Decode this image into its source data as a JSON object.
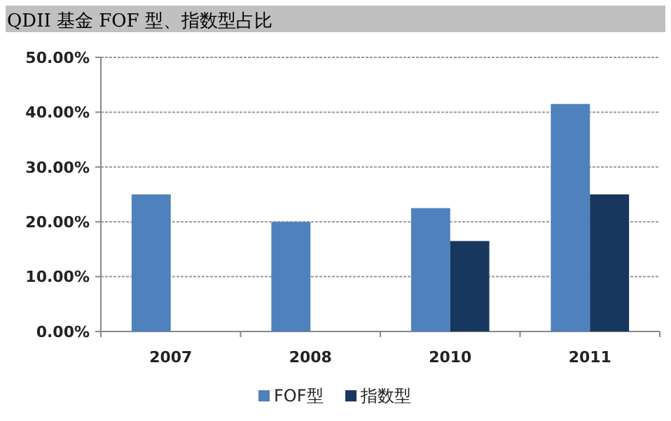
{
  "chart_data": {
    "type": "bar",
    "title": "QDII 基金 FOF 型、指数型占比",
    "categories": [
      "2007",
      "2008",
      "2010",
      "2011"
    ],
    "series": [
      {
        "name": "FOF型",
        "color": "#4f81bd",
        "values": [
          25,
          20,
          22.5,
          41.5
        ]
      },
      {
        "name": "指数型",
        "color": "#17375e",
        "values": [
          null,
          null,
          16.5,
          25
        ]
      }
    ],
    "ylim": [
      0,
      50
    ],
    "yticks": [
      {
        "value": 0,
        "label": "0.00%"
      },
      {
        "value": 10,
        "label": "10.00%"
      },
      {
        "value": 20,
        "label": "20.00%"
      },
      {
        "value": 30,
        "label": "30.00%"
      },
      {
        "value": 40,
        "label": "40.00%"
      },
      {
        "value": 50,
        "label": "50.00%"
      }
    ],
    "grid": "y",
    "legend": "bottom"
  }
}
